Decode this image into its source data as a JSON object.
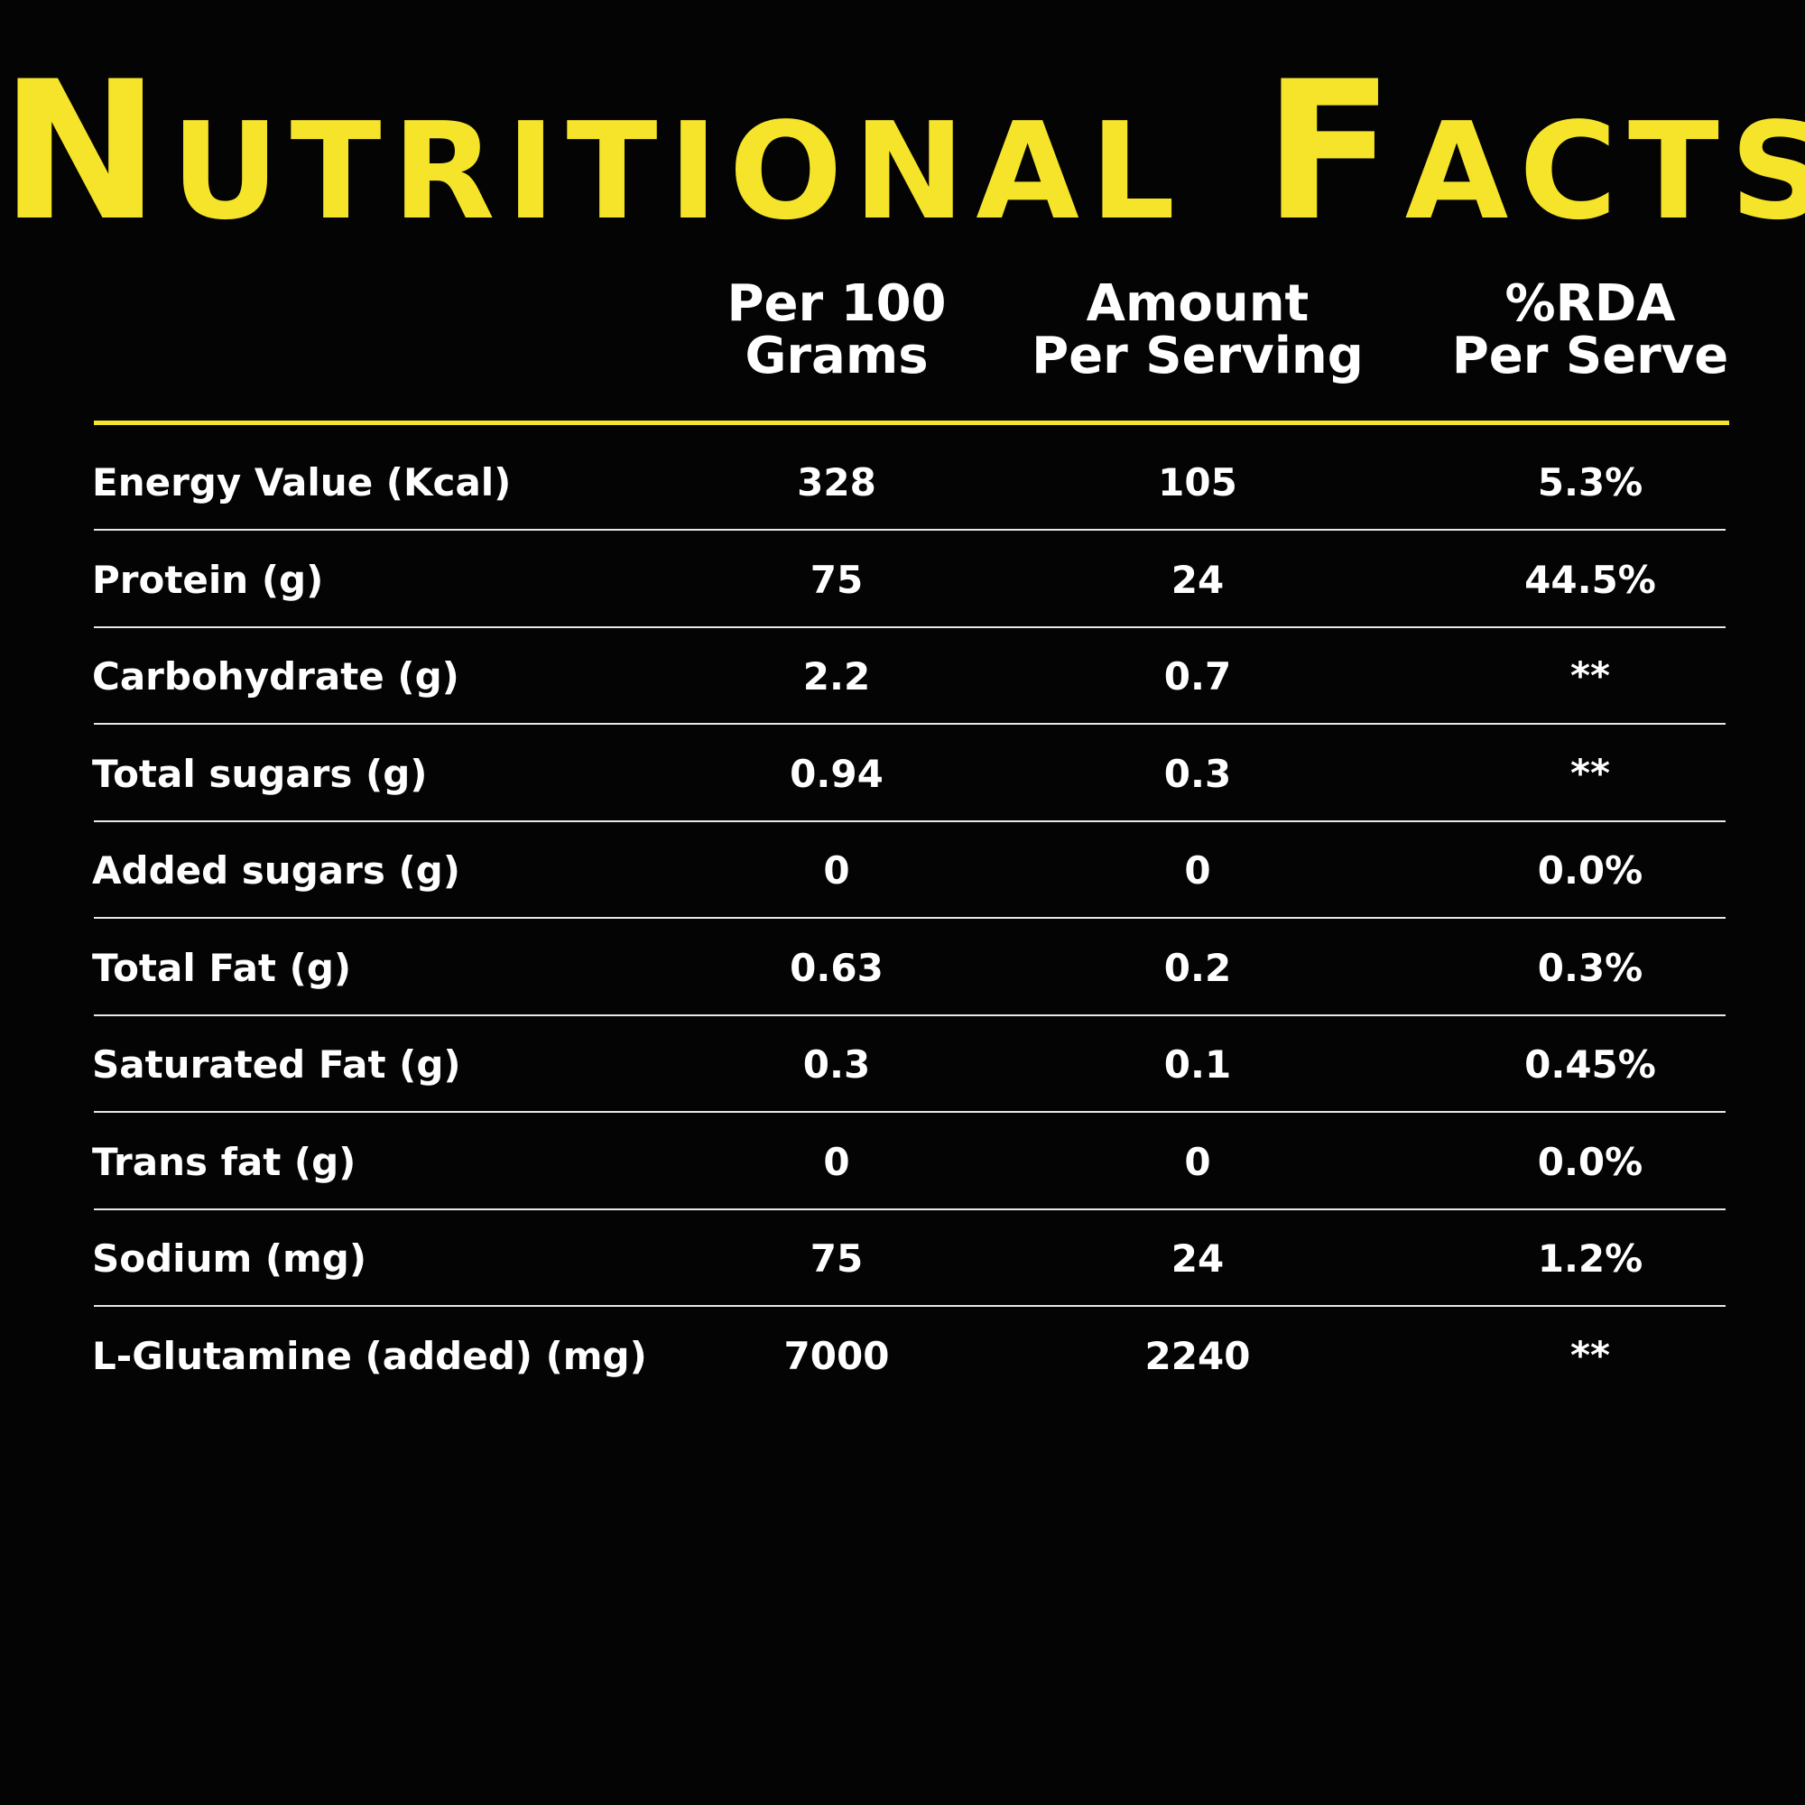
{
  "title": "Nutritional Facts",
  "colors": {
    "accent": "#f5e42a",
    "background": "#040404",
    "text": "#ffffff"
  },
  "columns": [
    {
      "line1": "Per 100",
      "line2": "Grams"
    },
    {
      "line1": "Amount",
      "line2": "Per Serving"
    },
    {
      "line1": "%RDA",
      "line2": "Per Serve"
    }
  ],
  "rows": [
    {
      "label": "Energy Value (Kcal)",
      "per100": "328",
      "serving": "105",
      "rda": "5.3%"
    },
    {
      "label": "Protein (g)",
      "per100": "75",
      "serving": "24",
      "rda": "44.5%"
    },
    {
      "label": "Carbohydrate (g)",
      "per100": "2.2",
      "serving": "0.7",
      "rda": "**"
    },
    {
      "label": "Total sugars (g)",
      "per100": "0.94",
      "serving": "0.3",
      "rda": "**"
    },
    {
      "label": "Added sugars (g)",
      "per100": "0",
      "serving": "0",
      "rda": "0.0%"
    },
    {
      "label": "Total Fat (g)",
      "per100": "0.63",
      "serving": "0.2",
      "rda": "0.3%"
    },
    {
      "label": "Saturated Fat (g)",
      "per100": "0.3",
      "serving": "0.1",
      "rda": "0.45%"
    },
    {
      "label": "Trans fat (g)",
      "per100": "0",
      "serving": "0",
      "rda": "0.0%"
    },
    {
      "label": "Sodium (mg)",
      "per100": "75",
      "serving": "24",
      "rda": "1.2%"
    },
    {
      "label": "L-Glutamine (added) (mg)",
      "per100": "7000",
      "serving": "2240",
      "rda": "**"
    }
  ]
}
